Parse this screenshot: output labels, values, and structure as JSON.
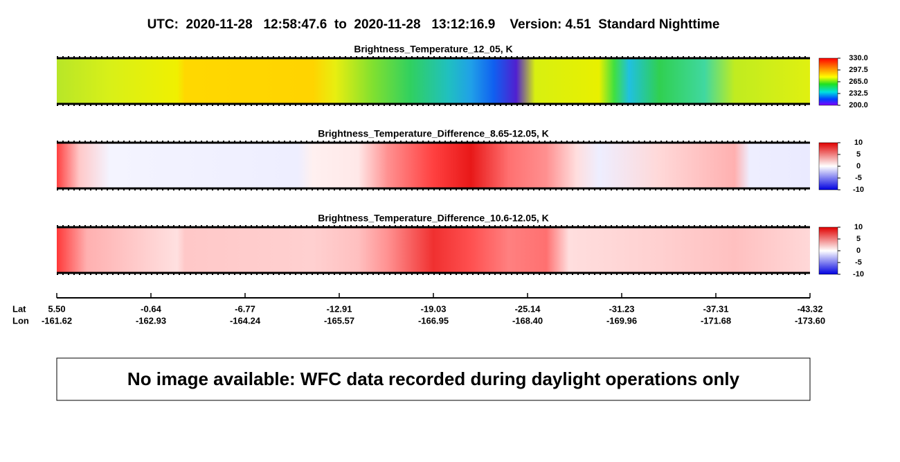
{
  "header": {
    "title": "UTC:  2020-11-28   12:58:47.6  to  2020-11-28   13:12:16.9    Version: 4.51  Standard Nighttime"
  },
  "panels": [
    {
      "title": "Brightness_Temperature_12_05, K",
      "colorbar": [
        "330.0",
        "297.5",
        "265.0",
        "232.5",
        "200.0"
      ]
    },
    {
      "title": "Brightness_Temperature_Difference_8.65-12.05, K",
      "colorbar": [
        "10",
        "5",
        "0",
        "-5",
        "-10"
      ]
    },
    {
      "title": "Brightness_Temperature_Difference_10.6-12.05, K",
      "colorbar": [
        "10",
        "5",
        "0",
        "-5",
        "-10"
      ]
    }
  ],
  "axis": {
    "lat_label": "Lat",
    "lon_label": "Lon",
    "lat": [
      "5.50",
      "-0.64",
      "-6.77",
      "-12.91",
      "-19.03",
      "-25.14",
      "-31.23",
      "-37.31",
      "-43.32"
    ],
    "lon": [
      "-161.62",
      "-162.93",
      "-164.24",
      "-165.57",
      "-166.95",
      "-168.40",
      "-169.96",
      "-171.68",
      "-173.60"
    ]
  },
  "notice": "No image available: WFC data recorded during daylight operations only"
}
